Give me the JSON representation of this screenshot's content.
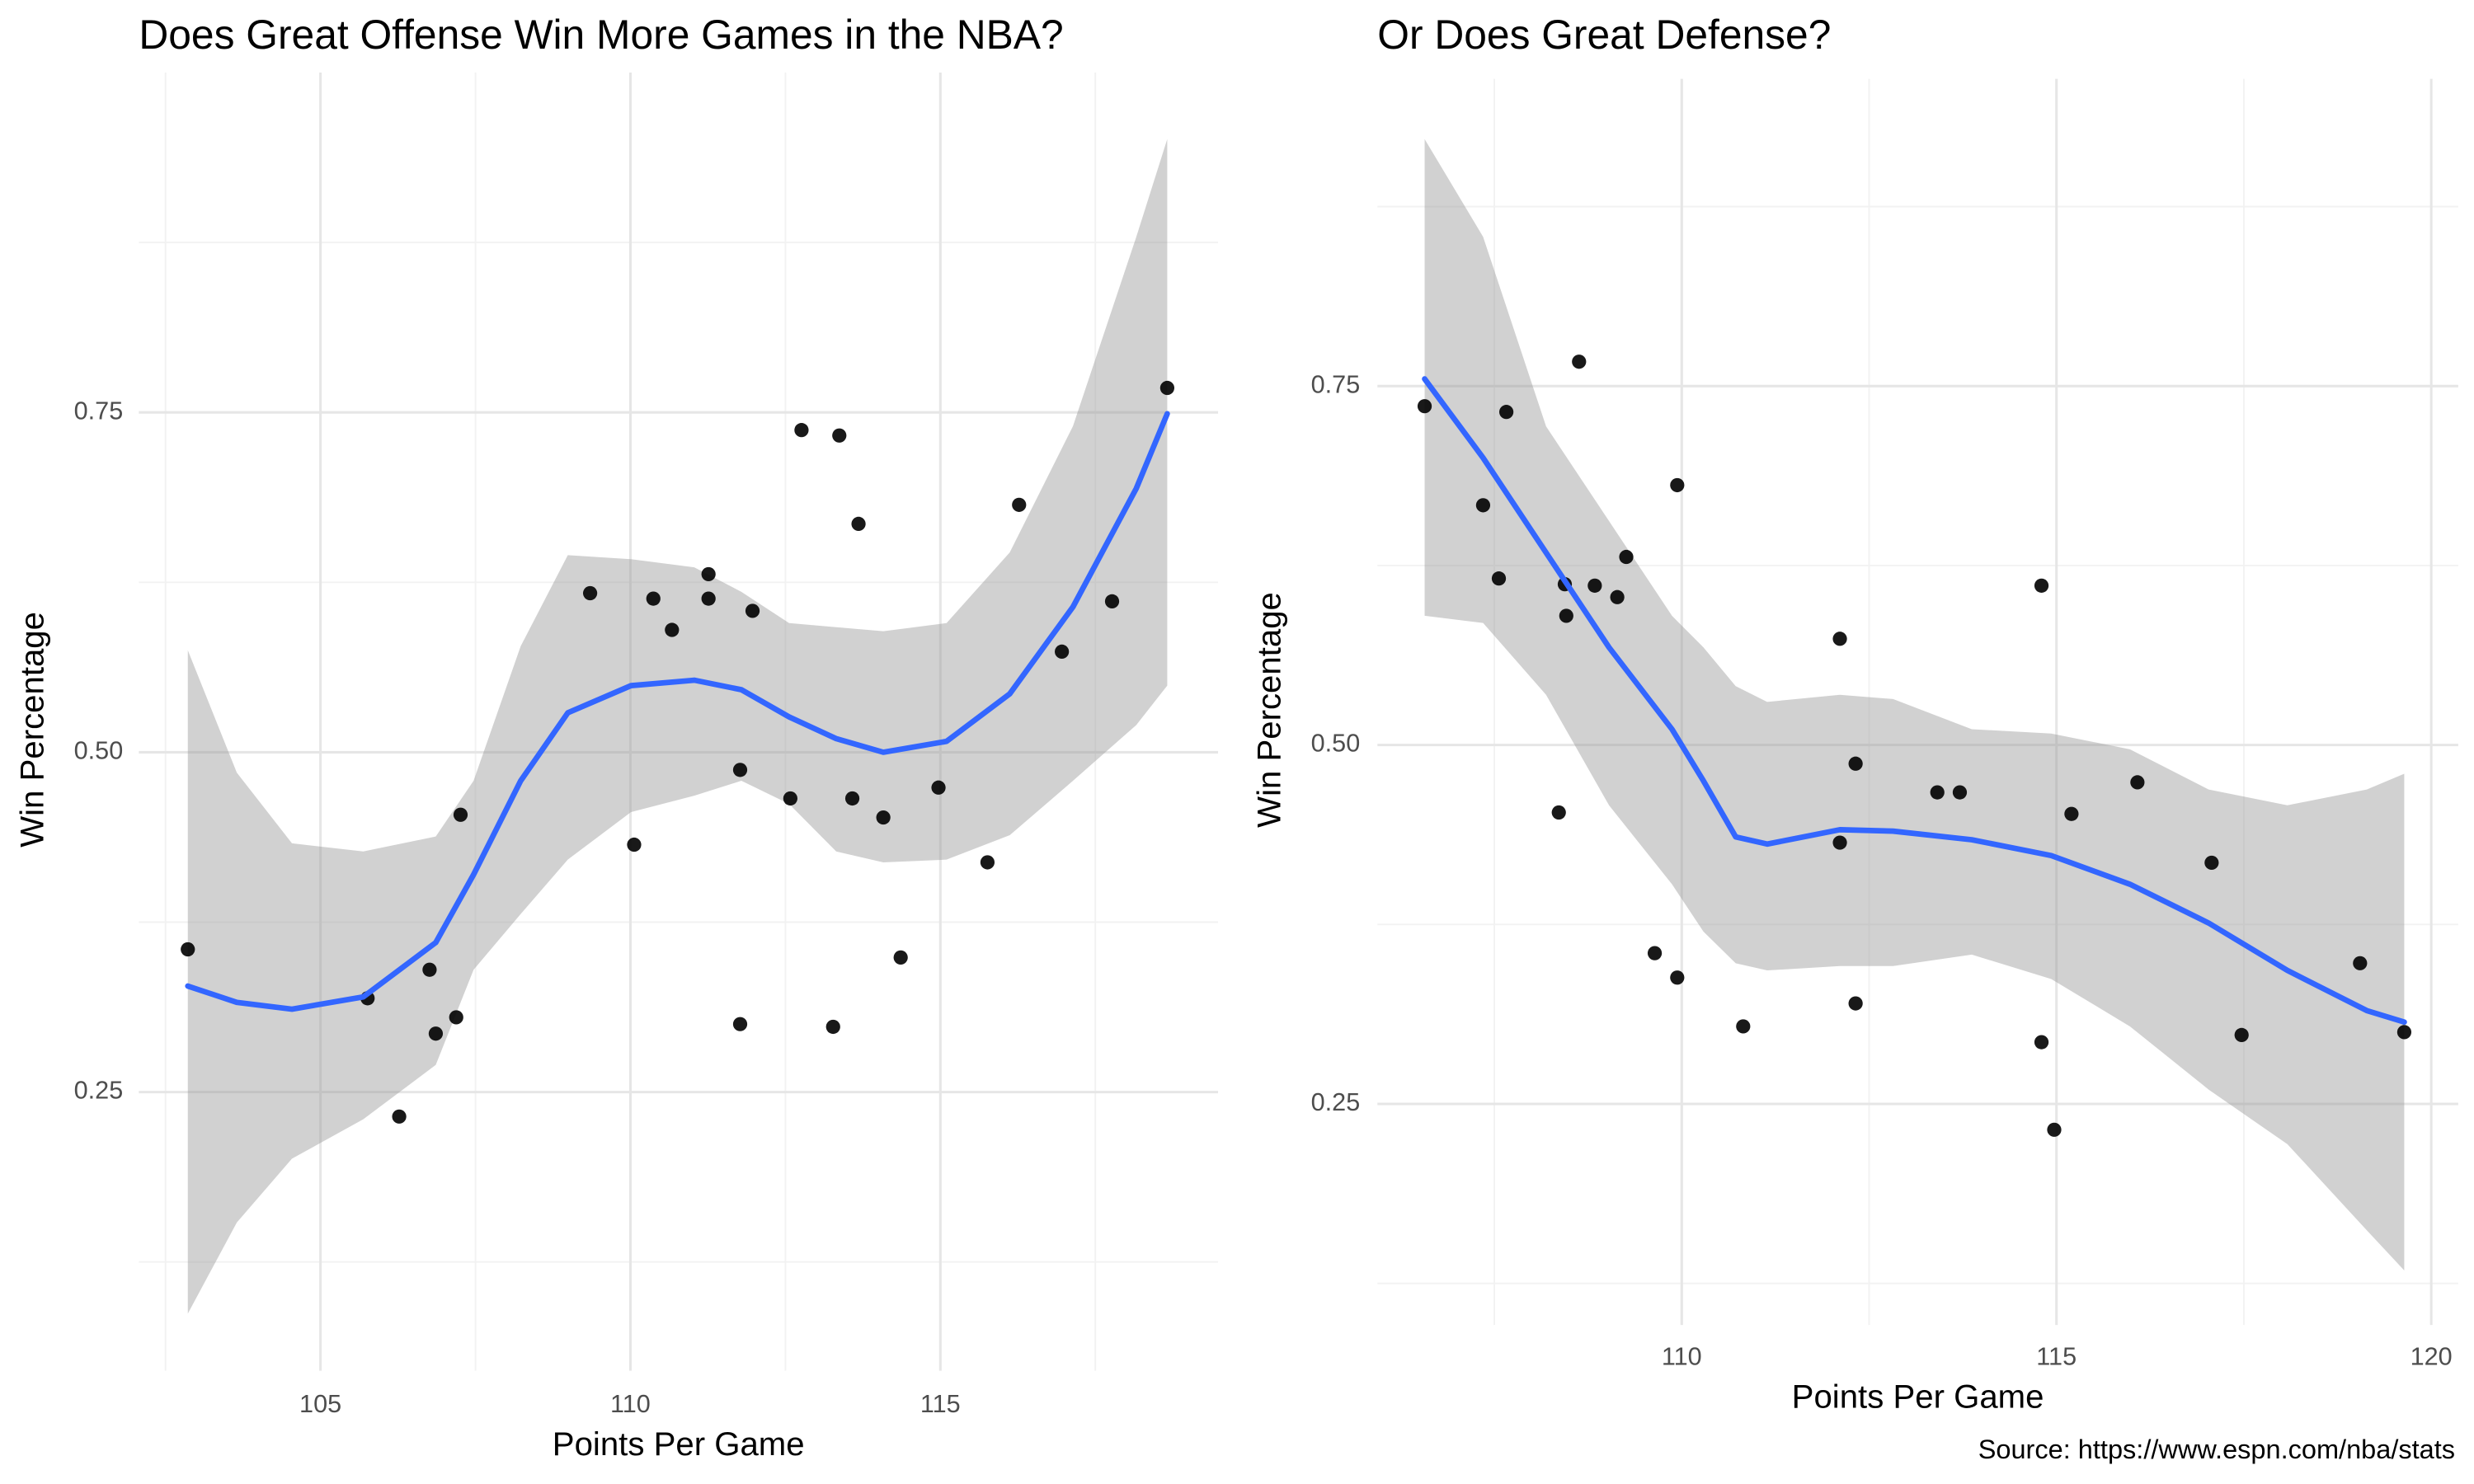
{
  "caption": "Source: https://www.espn.com/nba/stats",
  "chart_data": [
    {
      "type": "scatter",
      "title": "Does Great Offense Win More Games in the NBA?",
      "x_label": "Points Per Game",
      "y_label": "Win Percentage",
      "xlim": [
        102.07,
        119.48
      ],
      "ylim": [
        0.045,
        1.0
      ],
      "xticks": [
        105,
        110,
        115
      ],
      "xminor": [
        102.5,
        107.5,
        112.5,
        117.5
      ],
      "yticks": [
        0.25,
        {
          "value": 0.5,
          "label": "0.50"
        },
        0.75
      ],
      "yminor": [
        0.125,
        0.375,
        0.625,
        0.875
      ],
      "grid": true,
      "points": {
        "color": "#000000",
        "x": [
          102.86,
          105.76,
          106.27,
          106.76,
          106.86,
          107.19,
          107.26,
          109.35,
          110.06,
          110.37,
          110.67,
          111.26,
          111.26,
          111.77,
          111.77,
          111.97,
          112.58,
          112.76,
          113.27,
          113.37,
          113.58,
          113.68,
          114.08,
          114.36,
          114.97,
          115.76,
          116.27,
          116.96,
          117.77,
          118.66
        ],
        "y": [
          0.355,
          0.319,
          0.232,
          0.34,
          0.293,
          0.305,
          0.454,
          0.617,
          0.432,
          0.613,
          0.59,
          0.631,
          0.613,
          0.487,
          0.3,
          0.604,
          0.466,
          0.737,
          0.298,
          0.733,
          0.466,
          0.668,
          0.452,
          0.349,
          0.474,
          0.419,
          0.682,
          0.574,
          0.611,
          0.768
        ]
      },
      "smooth": {
        "color": "#3366ff",
        "fill": "#999999",
        "x": [
          102.86,
          103.65,
          104.54,
          105.69,
          106.86,
          107.47,
          108.23,
          108.99,
          110.01,
          111.03,
          111.79,
          112.56,
          113.32,
          114.08,
          115.1,
          116.12,
          117.14,
          118.16,
          118.66
        ],
        "y": [
          0.328,
          0.316,
          0.311,
          0.32,
          0.36,
          0.41,
          0.479,
          0.529,
          0.549,
          0.553,
          0.546,
          0.526,
          0.51,
          0.5,
          0.508,
          0.543,
          0.607,
          0.694,
          0.749
        ],
        "upper": [
          0.575,
          0.485,
          0.433,
          0.427,
          0.438,
          0.479,
          0.578,
          0.645,
          0.642,
          0.636,
          0.618,
          0.595,
          0.592,
          0.589,
          0.595,
          0.647,
          0.74,
          0.879,
          0.951
        ],
        "lower": [
          0.087,
          0.154,
          0.201,
          0.23,
          0.27,
          0.34,
          0.381,
          0.421,
          0.456,
          0.468,
          0.479,
          0.462,
          0.427,
          0.419,
          0.421,
          0.439,
          0.479,
          0.52,
          0.549
        ]
      }
    },
    {
      "type": "scatter",
      "title": "Or Does Great Defense?",
      "x_label": "Points Per Game",
      "y_label": "Win Percentage",
      "xlim": [
        105.94,
        120.36
      ],
      "ylim": [
        0.096,
        0.964
      ],
      "xticks": [
        110,
        115,
        120
      ],
      "xminor": [
        107.5,
        112.5,
        117.5
      ],
      "yticks": [
        0.25,
        {
          "value": 0.5,
          "label": "0.50"
        },
        0.75
      ],
      "yminor": [
        0.125,
        0.375,
        0.625,
        0.875
      ],
      "grid": true,
      "points": {
        "color": "#000000",
        "x": [
          106.57,
          107.35,
          107.56,
          107.66,
          108.36,
          108.44,
          108.46,
          108.63,
          108.84,
          109.14,
          109.26,
          109.64,
          109.94,
          109.94,
          110.82,
          112.11,
          112.11,
          112.32,
          112.32,
          113.41,
          113.71,
          114.8,
          114.8,
          114.97,
          115.2,
          116.08,
          117.07,
          117.47,
          119.05,
          119.64
        ],
        "y": [
          0.736,
          0.667,
          0.616,
          0.732,
          0.453,
          0.612,
          0.59,
          0.767,
          0.611,
          0.603,
          0.631,
          0.355,
          0.681,
          0.338,
          0.304,
          0.574,
          0.432,
          0.487,
          0.32,
          0.467,
          0.467,
          0.611,
          0.293,
          0.232,
          0.452,
          0.474,
          0.418,
          0.298,
          0.348,
          0.3
        ]
      },
      "smooth": {
        "color": "#3366ff",
        "fill": "#999999",
        "x": [
          106.57,
          107.35,
          108.19,
          109.03,
          109.87,
          110.29,
          110.72,
          111.14,
          112.11,
          112.82,
          113.87,
          114.93,
          115.98,
          117.03,
          118.08,
          119.14,
          119.64
        ],
        "y": [
          0.755,
          0.7,
          0.634,
          0.568,
          0.511,
          0.475,
          0.436,
          0.431,
          0.441,
          0.44,
          0.434,
          0.423,
          0.403,
          0.376,
          0.343,
          0.315,
          0.307
        ],
        "upper": [
          0.922,
          0.854,
          0.722,
          0.656,
          0.59,
          0.568,
          0.541,
          0.53,
          0.535,
          0.532,
          0.511,
          0.508,
          0.497,
          0.469,
          0.458,
          0.469,
          0.48
        ],
        "lower": [
          0.59,
          0.585,
          0.535,
          0.458,
          0.403,
          0.37,
          0.348,
          0.343,
          0.346,
          0.346,
          0.354,
          0.337,
          0.304,
          0.26,
          0.222,
          0.162,
          0.134
        ]
      }
    }
  ]
}
